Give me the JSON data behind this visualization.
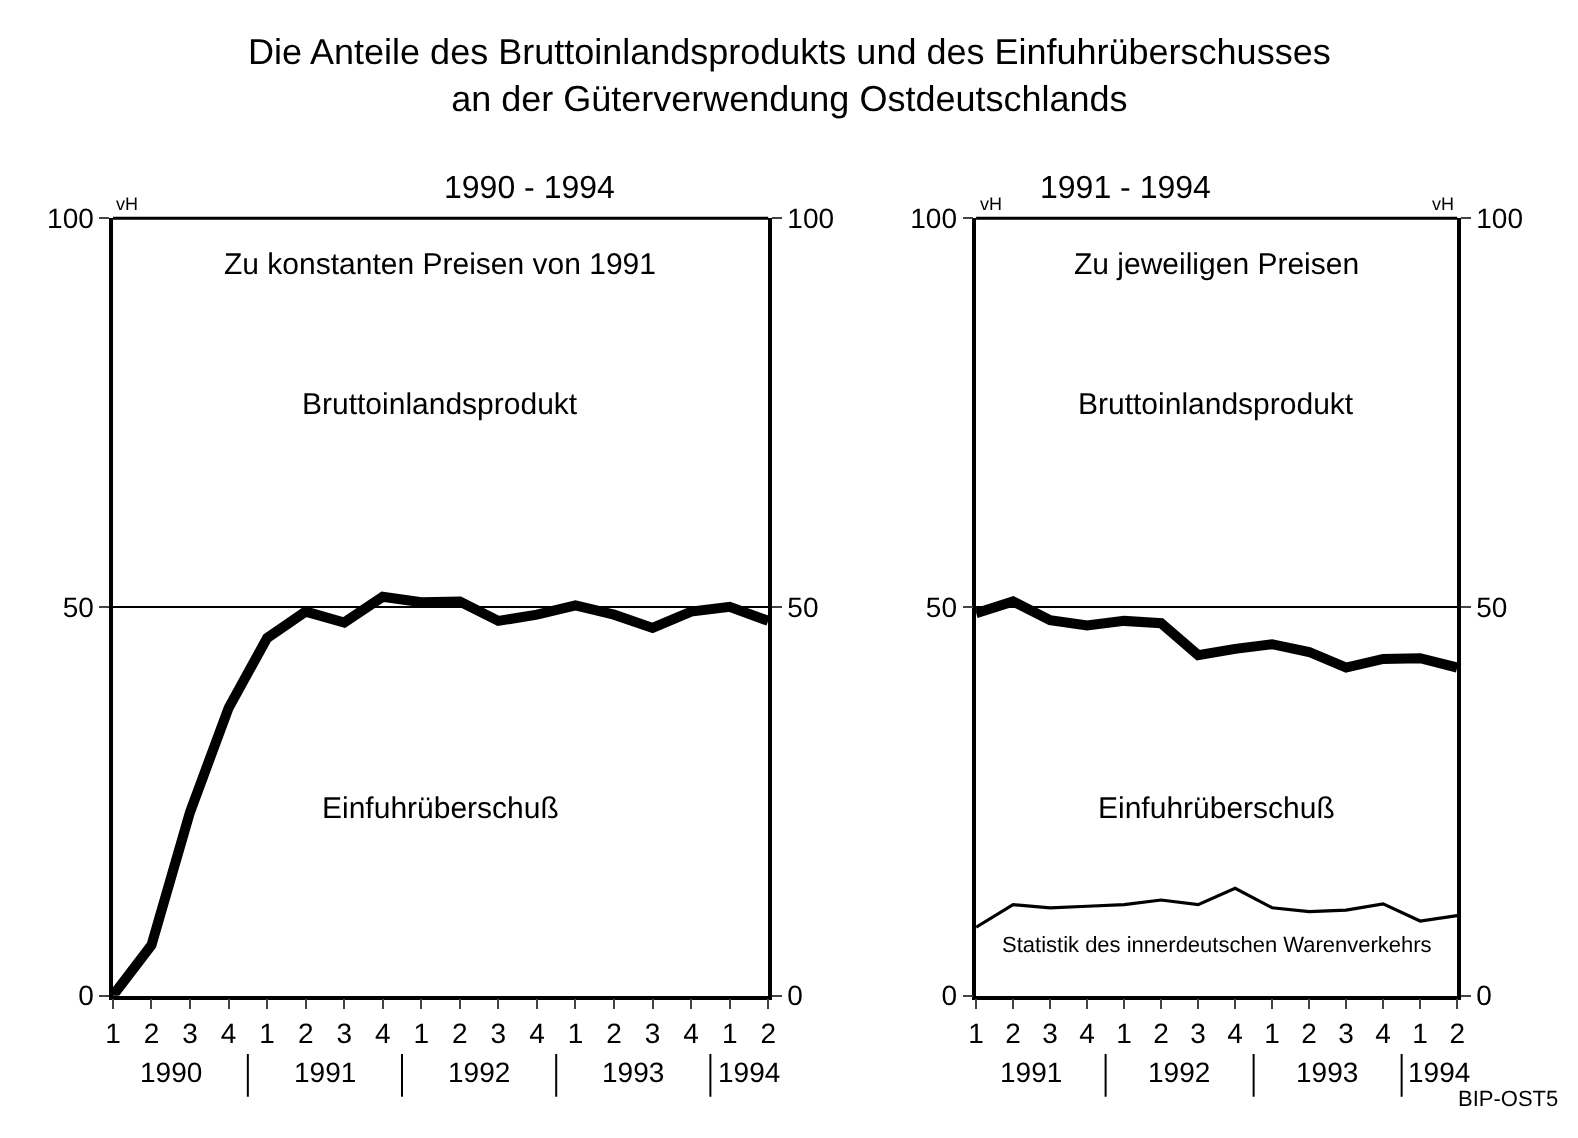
{
  "chart_data": [
    {
      "type": "line",
      "title": "Die Anteile des Bruttoinlandsprodukts und des Einfuhrüberschusses\nan der Güterverwendung Ostdeutschlands",
      "subtitle": "1990 - 1994",
      "ylabel": "vH",
      "categories": [
        "1",
        "2",
        "3",
        "4",
        "1",
        "2",
        "3",
        "4",
        "1",
        "2",
        "3",
        "4",
        "1",
        "2",
        "3",
        "4",
        "1",
        "2"
      ],
      "series": [
        {
          "color": "#000000",
          "values": [
            0,
            6.5,
            23.6,
            37,
            46,
            49.4,
            48,
            51.3,
            50.6,
            50.7,
            48.2,
            49,
            50.2,
            49,
            47.3,
            49.4,
            50,
            48.2
          ]
        }
      ],
      "ylim": [
        0,
        100
      ],
      "yticks": [
        0,
        50,
        100
      ],
      "y2lim": [
        0,
        100
      ],
      "y2ticks": [
        0,
        50,
        100
      ],
      "ref_lines": [
        {
          "axis": "y",
          "value": 50,
          "color": "#000000"
        }
      ],
      "annotations": [
        "Zu konstanten Preisen von 1991",
        "Bruttoinlandsprodukt",
        "Einfuhrüberschuß",
        "1990",
        "1991",
        "1992",
        "1993",
        "1994"
      ],
      "legend": false,
      "marker": "none",
      "line_style": "solid"
    },
    {
      "type": "line",
      "title": "1991 - 1994",
      "ylabel": "vH",
      "y2label": "vH",
      "categories": [
        "1",
        "2",
        "3",
        "4",
        "1",
        "2",
        "3",
        "4",
        "1",
        "2",
        "3",
        "4",
        "1",
        "2"
      ],
      "series": [
        {
          "color": "#000000",
          "values": [
            49.2,
            50.7,
            48.3,
            47.6,
            48.2,
            47.9,
            43.8,
            44.6,
            45.2,
            44.2,
            42.2,
            43.3,
            43.4,
            42.2
          ]
        },
        {
          "name": "Statistik des innerdeutschen Warenverkehrs",
          "color": "#000000",
          "values": [
            8.8,
            11.7,
            11.3,
            11.5,
            11.7,
            12.3,
            11.7,
            13.8,
            11.3,
            10.8,
            11,
            11.8,
            9.6,
            10.3
          ]
        }
      ],
      "ylim": [
        0,
        100
      ],
      "yticks": [
        0,
        50,
        100
      ],
      "y2lim": [
        0,
        100
      ],
      "y2ticks": [
        0,
        50,
        100
      ],
      "ref_lines": [
        {
          "axis": "y",
          "value": 50,
          "color": "#000000"
        }
      ],
      "annotations": [
        "Zu jeweiligen Preisen",
        "Bruttoinlandsprodukt",
        "Einfuhrüberschuß",
        "BIP-OST5",
        "1991",
        "1992",
        "1993",
        "1994"
      ],
      "legend": false,
      "marker": "none",
      "line_style": "solid"
    }
  ]
}
